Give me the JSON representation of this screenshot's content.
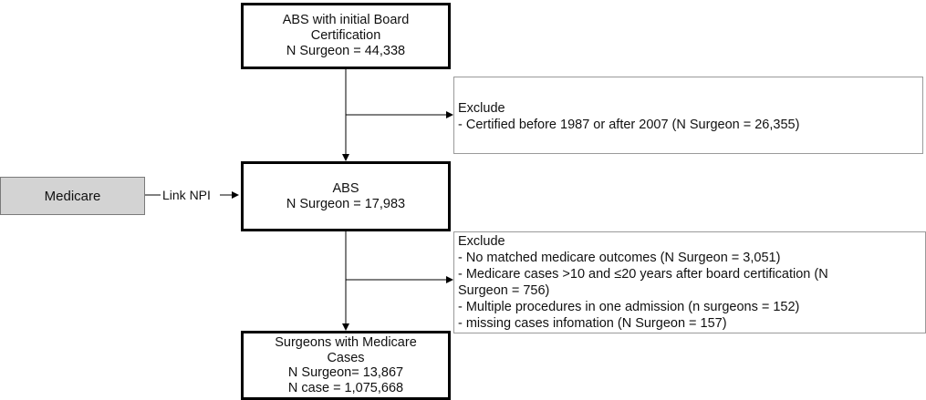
{
  "box1": {
    "line1": "ABS with initial Board",
    "line2": "Certification",
    "line3": "N Surgeon = 44,338"
  },
  "exclude1": {
    "title": "Exclude",
    "items": [
      "- Certified before 1987 or after 2007 (N Surgeon = 26,355)"
    ]
  },
  "medicare": {
    "label": "Medicare"
  },
  "link": {
    "label": "Link NPI"
  },
  "box2": {
    "line1": "ABS",
    "line2": "N Surgeon = 17,983"
  },
  "exclude2": {
    "title": "Exclude",
    "items": [
      "- No matched medicare outcomes (N Surgeon = 3,051)",
      "- Medicare cases >10 and ≤20 years after board certification (N",
      "Surgeon = 756)",
      "- Multiple procedures in one admission (n surgeons = 152)",
      "- missing cases infomation (N Surgeon = 157)"
    ]
  },
  "box3": {
    "line1": "Surgeons with Medicare",
    "line2": "Cases",
    "line3": "N Surgeon= 13,867",
    "line4": "N case = 1,075,668"
  }
}
